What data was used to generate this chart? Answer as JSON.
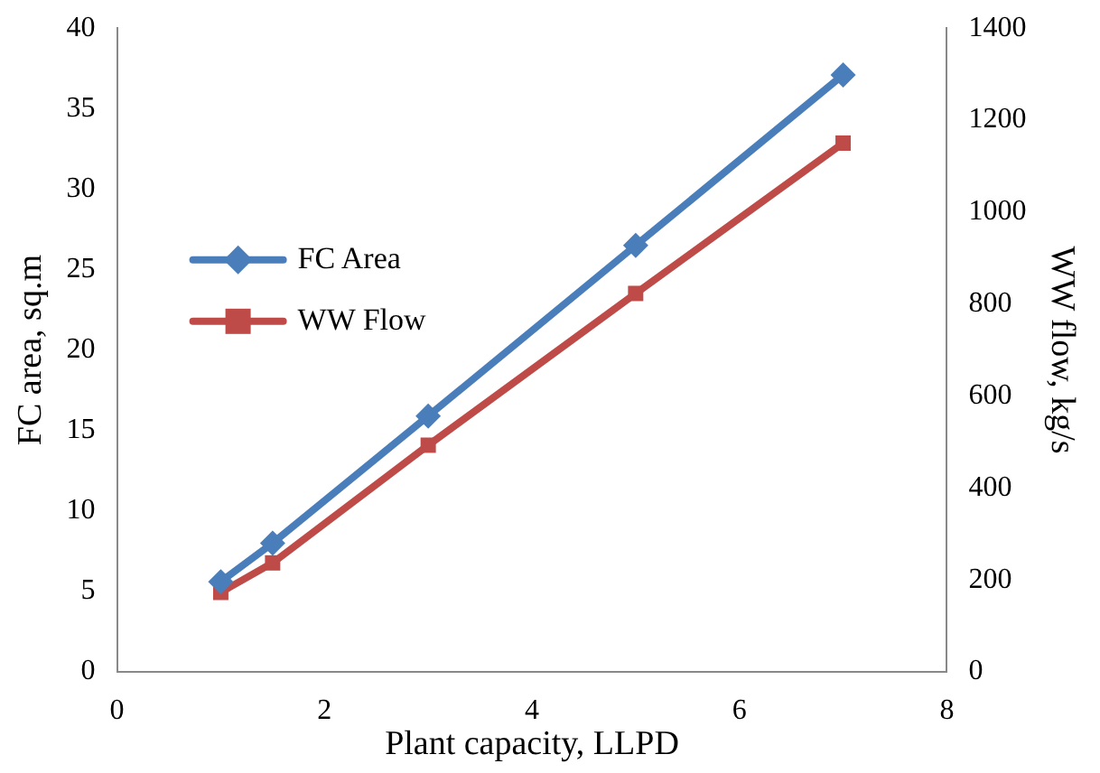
{
  "chart_data": {
    "type": "line",
    "xlabel": "Plant capacity, LLPD",
    "ylabel": "FC area, sq.m",
    "y2label": "WW flow, kg/s",
    "x": [
      1,
      1.5,
      3,
      5,
      7
    ],
    "series": [
      {
        "name": "FC Area",
        "color": "#4a7ebb",
        "marker": "diamond",
        "values": [
          5.6,
          8,
          15.9,
          26.5,
          37.1
        ]
      },
      {
        "name": "WW Flow",
        "color": "#be4b48",
        "marker": "square",
        "axis": "y2",
        "values": [
          173,
          237,
          493,
          823,
          1150
        ]
      }
    ],
    "xlim": [
      0,
      8
    ],
    "xticks": [
      0,
      2,
      4,
      6,
      8
    ],
    "ylim": [
      0,
      40
    ],
    "yticks": [
      0,
      5,
      10,
      15,
      20,
      25,
      30,
      35,
      40
    ],
    "y2lim": [
      0,
      1400
    ],
    "y2ticks": [
      0,
      200,
      400,
      600,
      800,
      1000,
      1200,
      1400
    ],
    "grid": false,
    "legend": "left",
    "line_style": "solid"
  }
}
